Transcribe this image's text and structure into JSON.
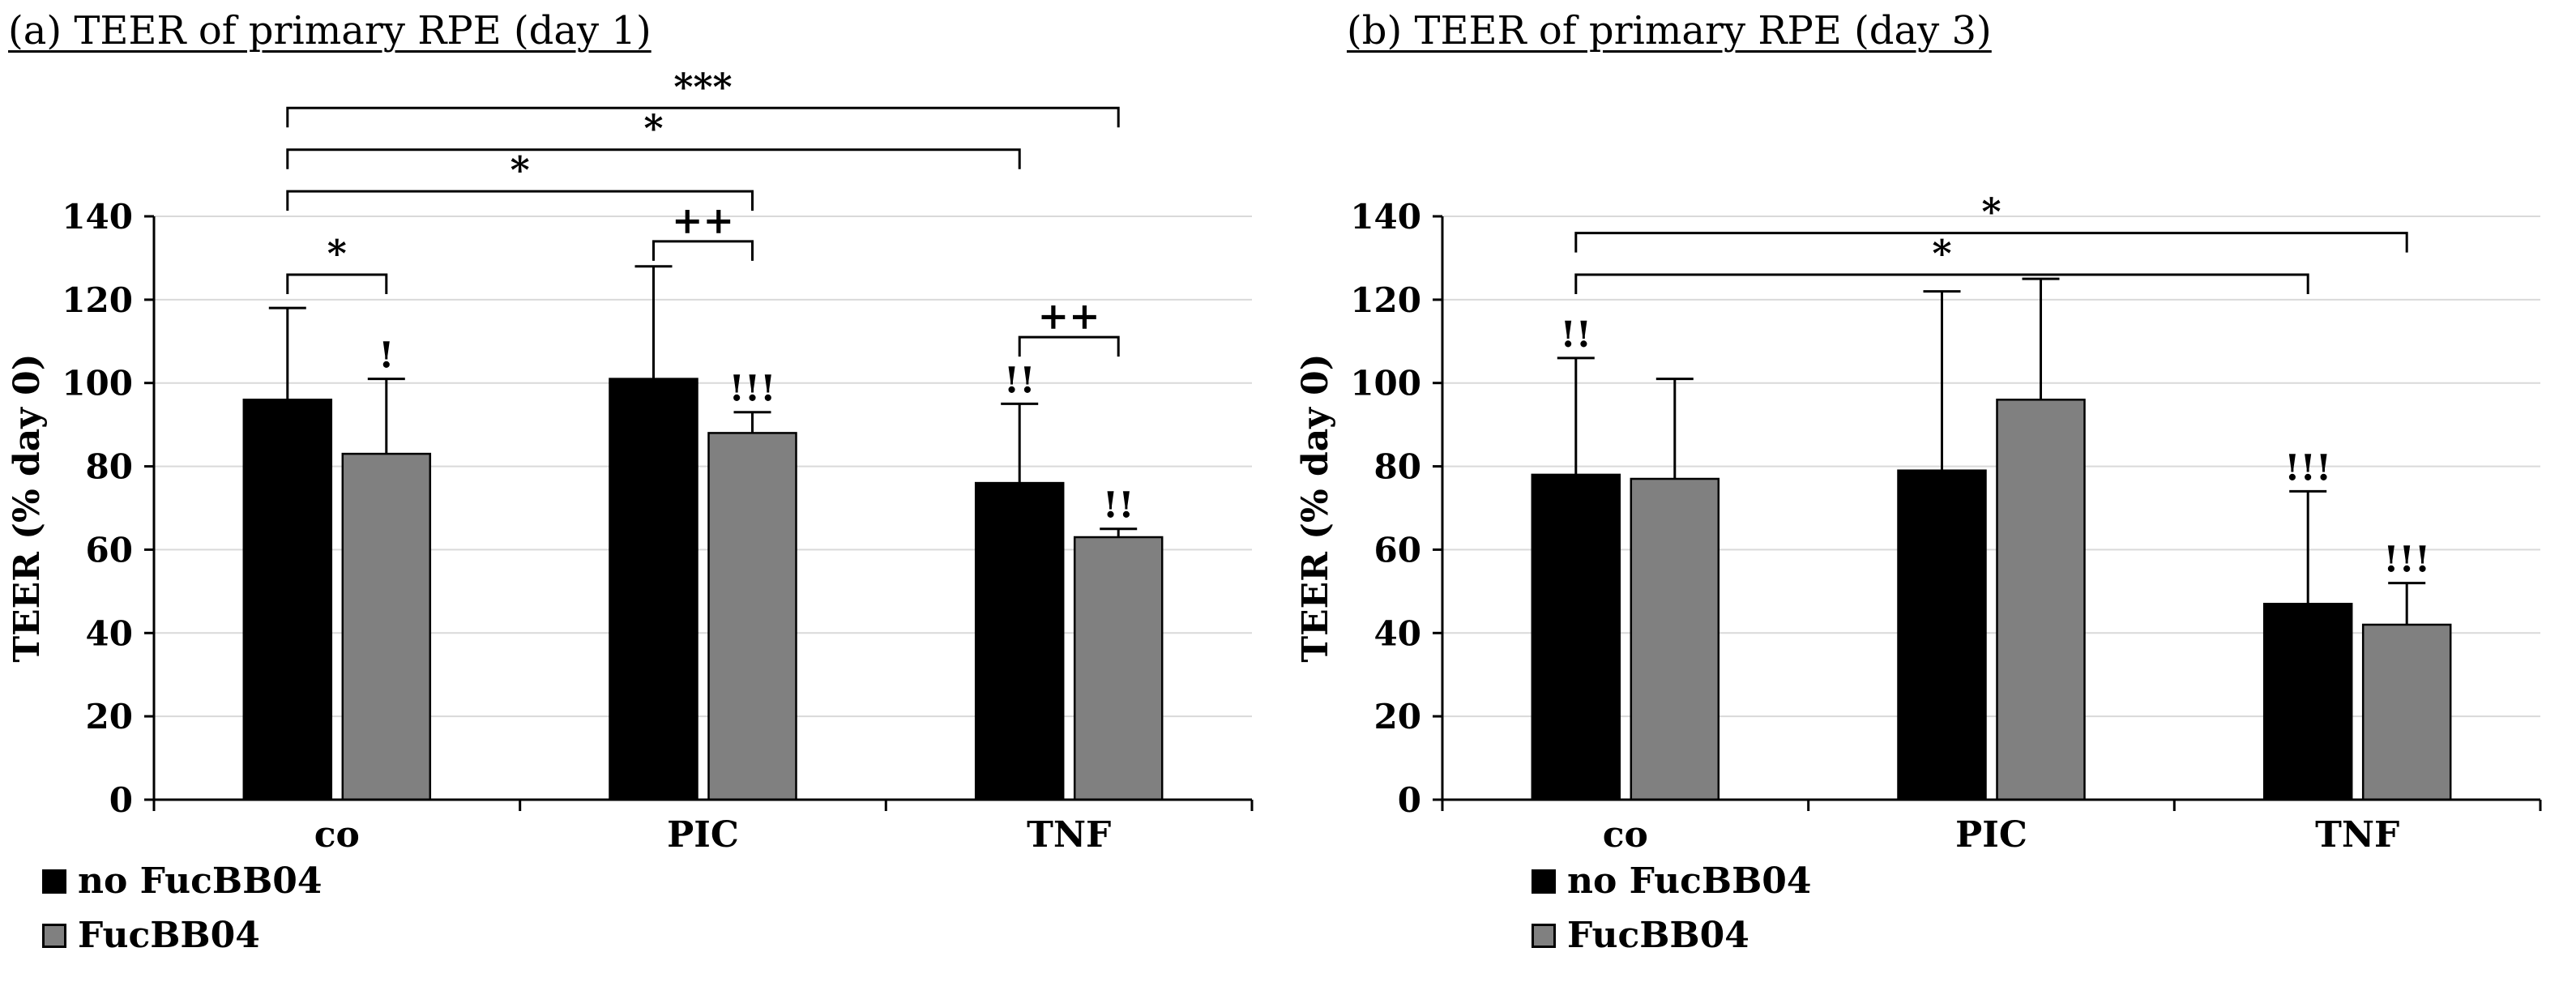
{
  "colors": {
    "background": "#ffffff",
    "bar_black": "#000000",
    "bar_gray": "#808080",
    "gridline": "#d9d9d9",
    "axis": "#000000"
  },
  "chart_data": [
    {
      "type": "bar",
      "title": "(a) TEER of primary RPE (day 1)",
      "ylabel": "TEER (% day 0)",
      "xlabel": "",
      "ylim": [
        0,
        140
      ],
      "yticks": [
        0,
        20,
        40,
        60,
        80,
        100,
        120,
        140
      ],
      "grid": true,
      "legend_position": "bottom-left",
      "categories": [
        "co",
        "PIC",
        "TNF"
      ],
      "series": [
        {
          "name": "no FucBB04",
          "color": "#000000",
          "values": [
            96,
            101,
            76
          ],
          "errors_up": [
            22,
            27,
            19
          ],
          "annotations": [
            "",
            "",
            "!!"
          ]
        },
        {
          "name": "FucBB04",
          "color": "#808080",
          "values": [
            83,
            88,
            63
          ],
          "errors_up": [
            18,
            5,
            2
          ],
          "annotations": [
            "!",
            "!!!",
            "!!"
          ]
        }
      ],
      "sig_brackets": [
        {
          "x1": [
            0,
            0
          ],
          "x2": [
            0,
            1
          ],
          "y": 126,
          "label": "*"
        },
        {
          "x1": [
            1,
            0
          ],
          "x2": [
            1,
            1
          ],
          "y": 134,
          "label": "++"
        },
        {
          "x1": [
            2,
            0
          ],
          "x2": [
            2,
            1
          ],
          "y": 111,
          "label": "++"
        },
        {
          "x1": [
            0,
            0
          ],
          "x2": [
            1,
            1
          ],
          "y": 146,
          "label": "*"
        },
        {
          "x1": [
            0,
            0
          ],
          "x2": [
            2,
            0
          ],
          "y": 156,
          "label": "*"
        },
        {
          "x1": [
            0,
            0
          ],
          "x2": [
            2,
            1
          ],
          "y": 166,
          "label": "***"
        }
      ]
    },
    {
      "type": "bar",
      "title": "(b) TEER of primary RPE (day 3)",
      "ylabel": "TEER (% day 0)",
      "xlabel": "",
      "ylim": [
        0,
        140
      ],
      "yticks": [
        0,
        20,
        40,
        60,
        80,
        100,
        120,
        140
      ],
      "grid": true,
      "legend_position": "bottom-left",
      "categories": [
        "co",
        "PIC",
        "TNF"
      ],
      "series": [
        {
          "name": "no FucBB04",
          "color": "#000000",
          "values": [
            78,
            79,
            47
          ],
          "errors_up": [
            28,
            43,
            27
          ],
          "annotations": [
            "!!",
            "",
            "!!!"
          ]
        },
        {
          "name": "FucBB04",
          "color": "#808080",
          "values": [
            77,
            96,
            42
          ],
          "errors_up": [
            24,
            29,
            10
          ],
          "annotations": [
            "",
            "",
            "!!!"
          ]
        }
      ],
      "sig_brackets": [
        {
          "x1": [
            0,
            0
          ],
          "x2": [
            2,
            0
          ],
          "y": 126,
          "label": "*"
        },
        {
          "x1": [
            0,
            0
          ],
          "x2": [
            2,
            1
          ],
          "y": 136,
          "label": "*"
        }
      ]
    }
  ]
}
